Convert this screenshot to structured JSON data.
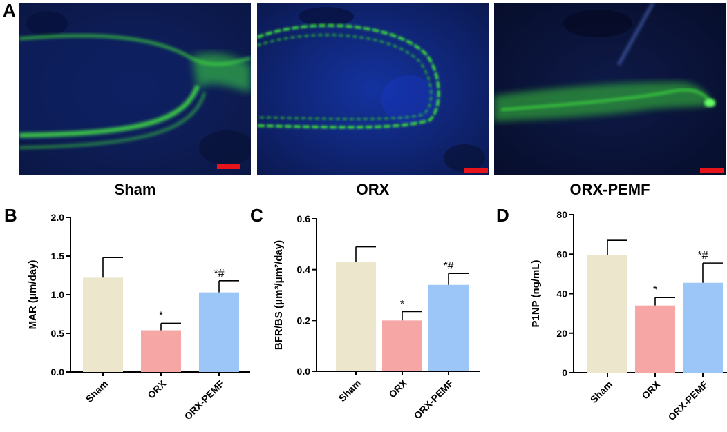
{
  "panel_a": {
    "letter": "A",
    "images": [
      {
        "label": "Sham",
        "scale_bar_color": "#e8141c"
      },
      {
        "label": "ORX",
        "scale_bar_color": "#e8141c"
      },
      {
        "label": "ORX-PEMF",
        "scale_bar_color": "#e8141c"
      }
    ]
  },
  "colors": {
    "Sham": "#ece6cc",
    "ORX": "#f7a6a6",
    "ORX-PEMF": "#9cc6f7",
    "tissue_blue": "#0c1a55",
    "fluorescence_green": "#3ddb3d"
  },
  "chart_data": [
    {
      "panel": "B",
      "type": "bar",
      "categories": [
        "Sham",
        "ORX",
        "ORX-PEMF"
      ],
      "values": [
        1.22,
        0.54,
        1.03
      ],
      "errors": [
        0.26,
        0.09,
        0.15
      ],
      "annotations": [
        "",
        "*",
        "*#"
      ],
      "ylabel": "MAR (μm/day)",
      "ylim": [
        0,
        2.0
      ],
      "yticks": [
        0,
        0.5,
        1.0,
        1.5,
        2.0
      ],
      "ytick_labels": [
        "0.0",
        "0.5",
        "1.0",
        "1.5",
        "2.0"
      ]
    },
    {
      "panel": "C",
      "type": "bar",
      "categories": [
        "Sham",
        "ORX",
        "ORX-PEMF"
      ],
      "values": [
        0.43,
        0.2,
        0.34
      ],
      "errors": [
        0.06,
        0.035,
        0.045
      ],
      "annotations": [
        "",
        "*",
        "*#"
      ],
      "ylabel": "BFR/BS (μm³/μm²/day)",
      "ylim": [
        0,
        0.6
      ],
      "yticks": [
        0,
        0.2,
        0.4,
        0.6
      ],
      "ytick_labels": [
        "0.0",
        "0.2",
        "0.4",
        "0.6"
      ]
    },
    {
      "panel": "D",
      "type": "bar",
      "categories": [
        "Sham",
        "ORX",
        "ORX-PEMF"
      ],
      "values": [
        59.5,
        34,
        45.5
      ],
      "errors": [
        7.5,
        4,
        10
      ],
      "annotations": [
        "",
        "*",
        "*#"
      ],
      "ylabel": "P1NP (ng/mL)",
      "ylim": [
        0,
        80
      ],
      "yticks": [
        0,
        20,
        40,
        60,
        80
      ],
      "ytick_labels": [
        "0",
        "20",
        "40",
        "60",
        "80"
      ]
    }
  ]
}
